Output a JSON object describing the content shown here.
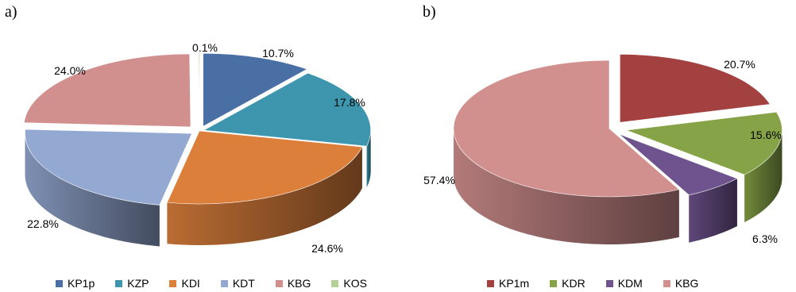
{
  "chart_data": [
    {
      "type": "pie",
      "panel": "a)",
      "categories": [
        "KP1p",
        "KZP",
        "KDI",
        "KDT",
        "KBG",
        "KOS"
      ],
      "values": [
        10.7,
        17.8,
        24.6,
        22.8,
        24.0,
        0.1
      ],
      "labels": [
        "10.7%",
        "17.8%",
        "24.6%",
        "22.8%",
        "24.0%",
        "0.1%"
      ],
      "colors": [
        "#4a6fa5",
        "#3d96ad",
        "#db7f3b",
        "#94a9d2",
        "#d18f8e",
        "#b5d196"
      ],
      "legend": "bottom"
    },
    {
      "type": "pie",
      "panel": "b)",
      "categories": [
        "KP1m",
        "KDR",
        "KDM",
        "KBG"
      ],
      "values": [
        20.7,
        15.6,
        6.3,
        57.4
      ],
      "labels": [
        "20.7%",
        "15.6%",
        "6.3%",
        "57.4%"
      ],
      "colors": [
        "#a34040",
        "#86a347",
        "#6e538e",
        "#d18f8e"
      ],
      "legend": "bottom"
    }
  ]
}
